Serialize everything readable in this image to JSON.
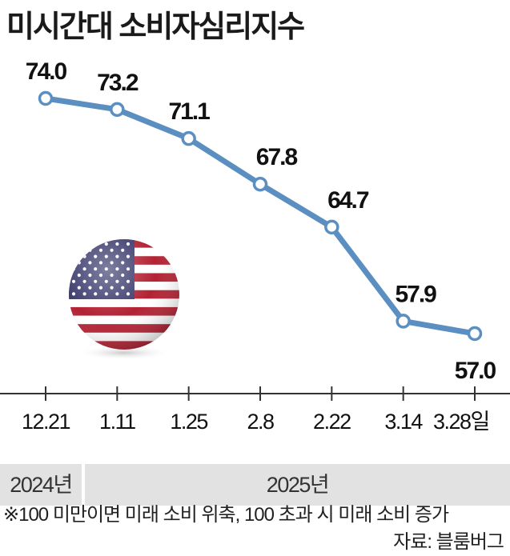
{
  "title": "미시간대 소비자심리지수",
  "chart_data": {
    "type": "line",
    "categories": [
      "12.21",
      "1.11",
      "1.25",
      "2.8",
      "2.22",
      "3.14",
      "3.28일"
    ],
    "values": [
      74.0,
      73.2,
      71.1,
      67.8,
      64.7,
      57.9,
      57.0
    ],
    "value_labels": [
      "74.0",
      "73.2",
      "71.1",
      "67.8",
      "64.7",
      "57.9",
      "57.0"
    ],
    "ylim": [
      55,
      76
    ],
    "grid": false,
    "legend": "none",
    "line_color": "#5b8fc1",
    "marker_fill": "#ffffff"
  },
  "years": [
    "2024년",
    "2025년"
  ],
  "footnote": "※100 미만이면 미래 소비 위축, 100 초과 시 미래 소비 증가",
  "source": "자료: 블룸버그",
  "flag_icon": "us-flag-icon"
}
